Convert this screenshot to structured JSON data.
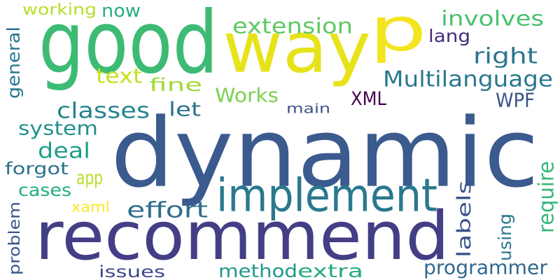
{
  "words": [
    {
      "text": "dynamic",
      "color": "#3b5b8f"
    },
    {
      "text": "recommend",
      "color": "#433e85"
    },
    {
      "text": "good",
      "color": "#3dbb74"
    },
    {
      "text": "way",
      "color": "#e7e31a"
    },
    {
      "text": "p",
      "color": "#f3e520"
    },
    {
      "text": "implement",
      "color": "#2a788e"
    },
    {
      "text": "Multilanguage",
      "color": "#2a788e"
    },
    {
      "text": "extension",
      "color": "#5ec962"
    },
    {
      "text": "involves",
      "color": "#48c16e"
    },
    {
      "text": "right",
      "color": "#2a768e"
    },
    {
      "text": "XML",
      "color": "#440154"
    },
    {
      "text": "WPF",
      "color": "#3a548c"
    },
    {
      "text": "Works",
      "color": "#7ad151"
    },
    {
      "text": "fine",
      "color": "#a0da39"
    },
    {
      "text": "text",
      "color": "#c8e020"
    },
    {
      "text": "let",
      "color": "#2c718e"
    },
    {
      "text": "main",
      "color": "#3b528b"
    },
    {
      "text": "classes",
      "color": "#25858e"
    },
    {
      "text": "system",
      "color": "#21918c"
    },
    {
      "text": "deal",
      "color": "#1f9e89"
    },
    {
      "text": "forgot",
      "color": "#2c728e"
    },
    {
      "text": "app",
      "color": "#b5de2b"
    },
    {
      "text": "cases",
      "color": "#26ad81"
    },
    {
      "text": "xaml",
      "color": "#fde725"
    },
    {
      "text": "effort",
      "color": "#2e6e8e"
    },
    {
      "text": "method",
      "color": "#1f9a8a"
    },
    {
      "text": "extra",
      "color": "#25ab82"
    },
    {
      "text": "issues",
      "color": "#3e4989"
    },
    {
      "text": "programmer",
      "color": "#31688e"
    },
    {
      "text": "working",
      "color": "#b5de2b"
    },
    {
      "text": "now",
      "color": "#28ae80"
    },
    {
      "text": "lang",
      "color": "#472c7a"
    },
    {
      "text": "general",
      "color": "#2a768e"
    },
    {
      "text": "labels",
      "color": "#3b528b"
    },
    {
      "text": "using",
      "color": "#2a788e"
    },
    {
      "text": "require",
      "color": "#35b779"
    },
    {
      "text": "problem",
      "color": "#39568c"
    }
  ]
}
